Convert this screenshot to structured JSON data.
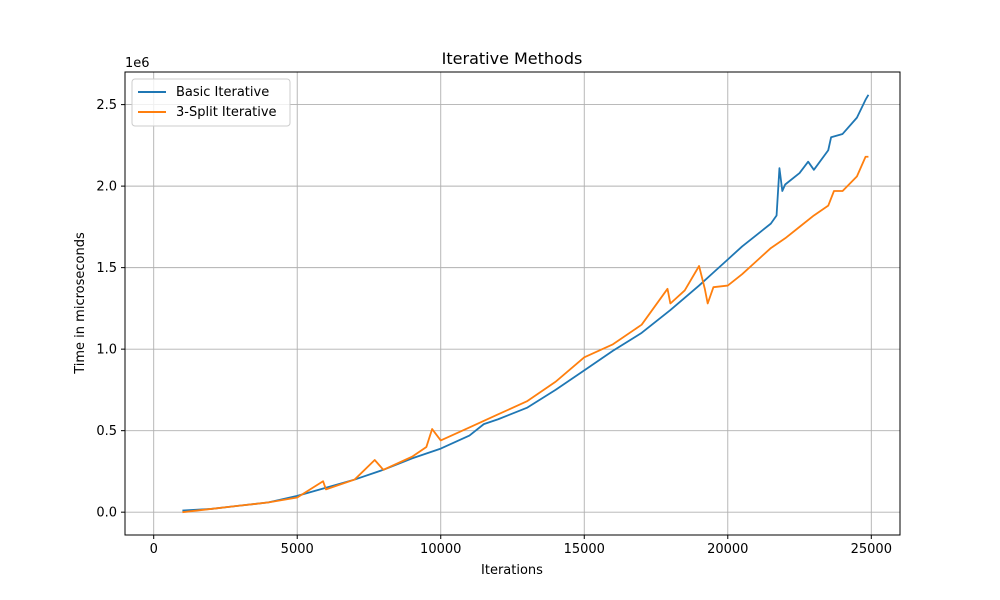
{
  "chart_data": {
    "type": "line",
    "title": "Iterative Methods",
    "xlabel": "Iterations",
    "ylabel": "Time in microseconds",
    "y_offset_label": "1e6",
    "xlim": [
      -1000,
      26000
    ],
    "ylim": [
      -0.14,
      2.7
    ],
    "x_ticks": [
      0,
      5000,
      10000,
      15000,
      20000,
      25000
    ],
    "x_tick_labels": [
      "0",
      "5000",
      "10000",
      "15000",
      "20000",
      "25000"
    ],
    "y_ticks": [
      0.0,
      0.5,
      1.0,
      1.5,
      2.0,
      2.5
    ],
    "y_tick_labels": [
      "0.0",
      "0.5",
      "1.0",
      "1.5",
      "2.0",
      "2.5"
    ],
    "grid": true,
    "legend_position": "top-left",
    "series": [
      {
        "name": "Basic Iterative",
        "color": "#1f77b4",
        "x": [
          1000,
          2000,
          3000,
          4000,
          5000,
          6000,
          7000,
          8000,
          9000,
          10000,
          11000,
          11500,
          12000,
          13000,
          14000,
          15000,
          16000,
          17000,
          18000,
          19000,
          19500,
          20000,
          20500,
          21000,
          21500,
          21700,
          21800,
          21900,
          22000,
          22500,
          22800,
          23000,
          23500,
          23600,
          24000,
          24500,
          24800,
          24900
        ],
        "y": [
          0.01,
          0.02,
          0.04,
          0.06,
          0.1,
          0.15,
          0.2,
          0.26,
          0.33,
          0.39,
          0.47,
          0.54,
          0.57,
          0.64,
          0.75,
          0.87,
          0.99,
          1.1,
          1.24,
          1.39,
          1.47,
          1.55,
          1.63,
          1.7,
          1.77,
          1.82,
          2.11,
          1.97,
          2.01,
          2.08,
          2.15,
          2.1,
          2.22,
          2.3,
          2.32,
          2.42,
          2.53,
          2.56
        ]
      },
      {
        "name": "3-Split Iterative",
        "color": "#ff7f0e",
        "x": [
          1000,
          2000,
          3000,
          4000,
          5000,
          5900,
          6000,
          7000,
          7700,
          8000,
          9000,
          9500,
          9700,
          10000,
          11000,
          12000,
          13000,
          14000,
          15000,
          16000,
          17000,
          17900,
          18000,
          18500,
          19000,
          19200,
          19300,
          19500,
          20000,
          20500,
          21000,
          21500,
          22000,
          22500,
          23000,
          23500,
          23700,
          24000,
          24500,
          24800,
          24900
        ],
        "y": [
          0.0,
          0.02,
          0.04,
          0.06,
          0.09,
          0.19,
          0.14,
          0.2,
          0.32,
          0.26,
          0.34,
          0.4,
          0.51,
          0.44,
          0.52,
          0.6,
          0.68,
          0.8,
          0.95,
          1.03,
          1.15,
          1.37,
          1.28,
          1.36,
          1.51,
          1.37,
          1.28,
          1.38,
          1.39,
          1.46,
          1.54,
          1.62,
          1.68,
          1.75,
          1.82,
          1.88,
          1.97,
          1.97,
          2.06,
          2.18,
          2.18
        ]
      }
    ]
  }
}
